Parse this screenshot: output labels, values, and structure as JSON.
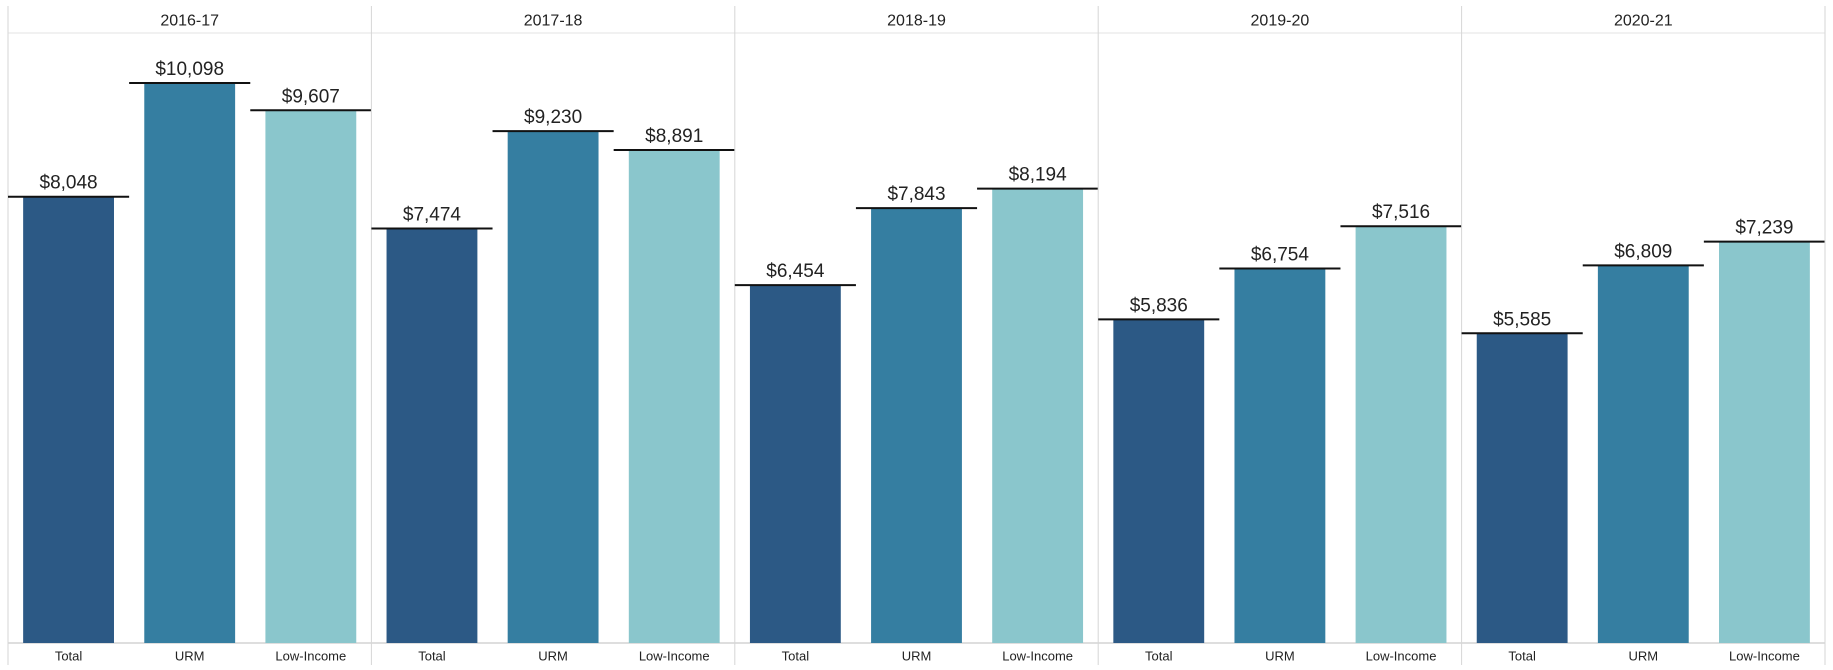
{
  "chart_data": {
    "type": "bar",
    "panels": [
      "2016-17",
      "2017-18",
      "2018-19",
      "2019-20",
      "2020-21"
    ],
    "categories": [
      "Total",
      "URM",
      "Low-Income"
    ],
    "colors": [
      "#2c5985",
      "#357ea1",
      "#8ac6cc"
    ],
    "values": [
      [
        8048,
        10098,
        9607
      ],
      [
        7474,
        9230,
        8891
      ],
      [
        6454,
        7843,
        8194
      ],
      [
        5836,
        6754,
        7516
      ],
      [
        5585,
        6809,
        7239
      ]
    ],
    "value_labels": [
      [
        "$8,048",
        "$10,098",
        "$9,607"
      ],
      [
        "$7,474",
        "$9,230",
        "$8,891"
      ],
      [
        "$6,454",
        "$7,843",
        "$8,194"
      ],
      [
        "$5,836",
        "$6,754",
        "$7,516"
      ],
      [
        "$5,585",
        "$6,809",
        "$7,239"
      ]
    ],
    "ylim": [
      0,
      11000
    ]
  }
}
